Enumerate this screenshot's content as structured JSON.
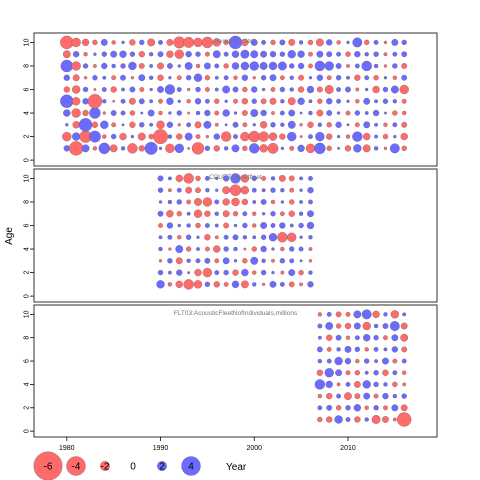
{
  "chart_data": {
    "type": "scatter",
    "ylabel": "Age",
    "legend_title": "Year",
    "xlim": [
      1976.5,
      2019.5
    ],
    "x_ticks": [
      1980,
      1990,
      2000,
      2010
    ],
    "y_ticks": [
      0,
      2,
      4,
      6,
      8,
      10
    ],
    "ylim": [
      -0.5,
      10.8
    ],
    "colors": {
      "negative": "#ff6b6b",
      "positive": "#6b6bff",
      "stroke": "#555555"
    },
    "legend": [
      {
        "label": "-6",
        "value": -6
      },
      {
        "label": "-4",
        "value": -4
      },
      {
        "label": "-2",
        "value": -2
      },
      {
        "label": "0",
        "value": 0
      },
      {
        "label": "2",
        "value": 2
      },
      {
        "label": "4",
        "value": 4
      }
    ],
    "panels": [
      {
        "title": "Residual catch",
        "years": [
          1980,
          2016
        ],
        "ages": [
          1,
          10
        ],
        "residuals": [
          [
            1.2,
            -2.8,
            1.5,
            -0.8,
            2.2,
            -1.5,
            0.8,
            -2.0,
            -1.2,
            2.5,
            0.6,
            -1.8,
            1.8,
            -0.5,
            -2.4,
            1.0,
            -1.2,
            0.8,
            1.5,
            -1.0,
            2.0,
            -1.6,
            -2.1,
            0.6,
            -0.9,
            1.4,
            -1.8,
            2.2,
            -1.0,
            0.5,
            -1.2,
            1.6,
            -1.5,
            0.8,
            -0.6,
            1.9,
            -1.0
          ],
          [
            -1.8,
            1.6,
            -2.4,
            2.3,
            -0.8,
            1.0,
            -1.4,
            0.6,
            -1.5,
            -1.0,
            -2.9,
            0.8,
            -1.2,
            1.5,
            -0.9,
            -0.6,
            1.2,
            -2.0,
            0.9,
            -1.8,
            -2.2,
            -2.0,
            -1.6,
            -1.2,
            1.8,
            -0.5,
            0.9,
            1.8,
            -1.2,
            0.6,
            -0.8,
            2.0,
            -1.4,
            0.7,
            -1.0,
            0.6,
            -1.4
          ],
          [
            0.6,
            -1.4,
            2.6,
            -1.2,
            1.6,
            -0.9,
            0.5,
            -1.2,
            1.0,
            0.7,
            -1.6,
            1.2,
            -0.6,
            0.9,
            -1.3,
            1.5,
            -0.7,
            0.5,
            1.1,
            -0.9,
            0.6,
            -1.4,
            1.0,
            0.8,
            1.5,
            -0.6,
            -1.2,
            0.8,
            -1.0,
            1.2,
            0.5,
            -0.9,
            1.3,
            0.7,
            -0.8,
            0.9,
            -1.1
          ],
          [
            1.4,
            -1.8,
            -1.2,
            2.2,
            -0.6,
            1.1,
            0.9,
            -1.0,
            0.5,
            1.3,
            -0.8,
            0.6,
            1.0,
            -0.5,
            0.8,
            1.2,
            -0.9,
            1.4,
            0.6,
            -1.1,
            1.5,
            1.2,
            -0.7,
            0.9,
            1.3,
            0.5,
            0.8,
            -1.3,
            1.1,
            0.6,
            -0.9,
            1.0,
            0.7,
            1.2,
            0.5,
            -1.0,
            -0.8
          ],
          [
            2.6,
            -1.6,
            1.2,
            -2.8,
            0.8,
            -0.5,
            0.9,
            -1.3,
            1.1,
            0.7,
            -0.9,
            1.4,
            0.6,
            -0.8,
            1.2,
            0.9,
            -1.0,
            0.6,
            -0.9,
            -1.2,
            1.0,
            -1.1,
            -1.3,
            0.8,
            -1.5,
            1.4,
            0.7,
            -1.0,
            1.2,
            0.9,
            0.6,
            -0.8,
            1.3,
            0.7,
            1.0,
            0.8,
            -0.9
          ],
          [
            -1.2,
            -1.6,
            1.0,
            -0.5,
            0.9,
            -1.2,
            0.7,
            1.1,
            -0.9,
            0.6,
            1.3,
            2.0,
            0.9,
            -0.6,
            1.0,
            -0.9,
            0.7,
            1.5,
            1.1,
            -1.0,
            1.2,
            0.6,
            -0.9,
            1.0,
            0.8,
            -1.2,
            1.4,
            -1.1,
            -1.7,
            0.9,
            1.1,
            -0.7,
            0.6,
            -1.4,
            1.0,
            1.5,
            -1.8
          ],
          [
            1.2,
            -1.3,
            -0.6,
            1.0,
            0.7,
            -0.9,
            1.1,
            -0.6,
            1.3,
            0.8,
            -1.2,
            0.6,
            -0.9,
            1.0,
            1.6,
            -1.0,
            0.7,
            0.9,
            -0.8,
            1.2,
            -0.6,
            1.0,
            1.3,
            -0.9,
            0.8,
            -1.1,
            0.6,
            1.2,
            -0.9,
            1.0,
            0.7,
            -1.2,
            0.9,
            -1.0,
            0.6,
            -0.8,
            1.1
          ],
          [
            2.4,
            -1.8,
            1.0,
            -0.7,
            1.2,
            0.8,
            1.0,
            1.6,
            -1.1,
            0.7,
            -1.3,
            1.1,
            0.6,
            1.5,
            -0.8,
            1.3,
            0.9,
            -1.0,
            1.4,
            1.6,
            1.8,
            1.5,
            1.6,
            1.7,
            1.0,
            1.2,
            -0.9,
            2.0,
            1.8,
            1.1,
            -0.7,
            0.9,
            2.0,
            0.8,
            -0.6,
            1.0,
            -1.1
          ],
          [
            -1.5,
            1.2,
            -0.8,
            0.6,
            1.0,
            1.3,
            1.4,
            1.0,
            -1.2,
            0.8,
            1.1,
            -1.4,
            -1.8,
            1.2,
            1.0,
            -0.9,
            1.5,
            0.9,
            1.4,
            1.7,
            1.5,
            1.3,
            1.2,
            1.0,
            1.6,
            1.4,
            -0.9,
            1.3,
            1.1,
            0.9,
            -1.0,
            1.2,
            0.8,
            1.0,
            -0.7,
            0.9,
            1.1
          ],
          [
            -2.6,
            -1.8,
            -1.4,
            -1.0,
            1.3,
            -0.8,
            0.6,
            -1.2,
            1.0,
            -1.5,
            0.9,
            -1.3,
            -2.3,
            -2.1,
            -1.8,
            -2.2,
            -1.6,
            -1.0,
            2.6,
            -1.4,
            1.3,
            0.9,
            -1.0,
            1.1,
            -1.3,
            0.8,
            -1.0,
            -1.5,
            1.2,
            -0.8,
            0.6,
            1.9,
            -1.0,
            0.9,
            -0.6,
            1.3,
            1.0
          ]
        ]
      },
      {
        "title": "CPUETrapnetfleet",
        "years": [
          1990,
          2006
        ],
        "ages": [
          1,
          10
        ],
        "residuals": [
          [
            1.6,
            -0.8,
            -1.4,
            -2.0,
            -1.6,
            1.0,
            -1.2,
            -0.9,
            1.4,
            -1.5,
            0.8,
            -0.6,
            1.3,
            0.9,
            -1.1,
            -0.7,
            1.2
          ],
          [
            1.0,
            0.7,
            1.2,
            0.5,
            -1.4,
            -1.8,
            0.9,
            1.0,
            -1.2,
            1.4,
            -0.8,
            1.0,
            0.6,
            -0.7,
            1.3,
            -1.0,
            0.8
          ],
          [
            -0.6,
            1.0,
            -1.3,
            0.8,
            0.9,
            1.1,
            -0.9,
            1.3,
            0.6,
            -1.0,
            1.5,
            0.8,
            -0.7,
            1.0,
            0.9,
            0.5,
            -0.6
          ],
          [
            0.8,
            -0.6,
            1.5,
            -1.0,
            0.7,
            -0.9,
            -1.4,
            1.0,
            0.8,
            -0.5,
            -1.0,
            1.2,
            0.6,
            -0.8,
            1.0,
            0.9,
            -0.7
          ],
          [
            0.7,
            0.9,
            -0.8,
            1.0,
            0.6,
            -1.2,
            -0.7,
            0.9,
            1.1,
            0.8,
            0.7,
            1.0,
            1.6,
            -2.0,
            -1.8,
            0.6,
            0.8
          ],
          [
            -0.9,
            1.2,
            0.6,
            0.8,
            -1.0,
            0.9,
            0.7,
            -1.1,
            0.6,
            1.0,
            -0.8,
            1.3,
            0.9,
            1.2,
            0.7,
            1.0,
            1.4
          ],
          [
            1.1,
            -1.4,
            -1.0,
            0.7,
            -1.6,
            -1.2,
            0.8,
            -1.3,
            -1.0,
            0.9,
            -0.8,
            0.6,
            1.0,
            -0.9,
            -1.2,
            0.8,
            1.3
          ],
          [
            0.6,
            0.8,
            1.0,
            -0.9,
            -1.5,
            -1.8,
            0.9,
            -1.4,
            -1.6,
            -1.2,
            0.7,
            1.1,
            -0.8,
            0.6,
            -1.0,
            0.7,
            0.9
          ],
          [
            1.0,
            -0.7,
            0.9,
            -1.3,
            -1.1,
            0.8,
            0.6,
            -1.5,
            -2.2,
            -1.6,
            0.9,
            0.7,
            1.0,
            0.8,
            -0.9,
            0.6,
            1.2
          ],
          [
            1.1,
            0.7,
            -1.4,
            -2.0,
            -1.0,
            0.9,
            0.6,
            1.2,
            2.0,
            -1.6,
            1.0,
            -0.9,
            0.8,
            -1.3,
            -1.1,
            0.7,
            0.9
          ]
        ]
      },
      {
        "title": "FLT03:AcousticFleetNofIndividuals,millions",
        "years": [
          2007,
          2016
        ],
        "ages": [
          1,
          10
        ],
        "residuals": [
          [
            -1.0,
            -1.2,
            1.6,
            0.9,
            -1.2,
            0.8,
            -1.7,
            -1.3,
            -0.7,
            -2.8
          ],
          [
            0.9,
            1.1,
            -1.0,
            1.0,
            1.4,
            -0.8,
            1.0,
            -0.9,
            1.3,
            -1.3
          ],
          [
            -0.8,
            -1.2,
            0.9,
            -1.5,
            -1.1,
            1.3,
            -0.9,
            1.2,
            0.8,
            1.0
          ],
          [
            2.0,
            1.4,
            -0.7,
            0.9,
            -1.3,
            1.6,
            1.0,
            0.8,
            -1.0,
            -0.7
          ],
          [
            -1.2,
            1.8,
            1.3,
            -0.9,
            -1.0,
            0.7,
            1.0,
            -1.2,
            0.9,
            -0.8
          ],
          [
            0.8,
            0.9,
            1.6,
            1.2,
            -0.8,
            1.0,
            0.7,
            1.3,
            -0.9,
            0.9
          ],
          [
            1.1,
            -0.9,
            0.8,
            1.3,
            1.0,
            -0.8,
            0.9,
            0.7,
            1.2,
            -1.1
          ],
          [
            0.7,
            -1.2,
            1.1,
            -0.8,
            0.9,
            1.4,
            1.0,
            -0.9,
            1.3,
            -1.5
          ],
          [
            0.9,
            1.5,
            -1.0,
            -1.2,
            1.3,
            -1.6,
            0.8,
            1.1,
            1.9,
            -1.3
          ],
          [
            -0.8,
            0.9,
            -1.1,
            -0.9,
            1.5,
            1.9,
            -1.4,
            0.8,
            -1.6,
            0.7
          ]
        ]
      }
    ]
  }
}
